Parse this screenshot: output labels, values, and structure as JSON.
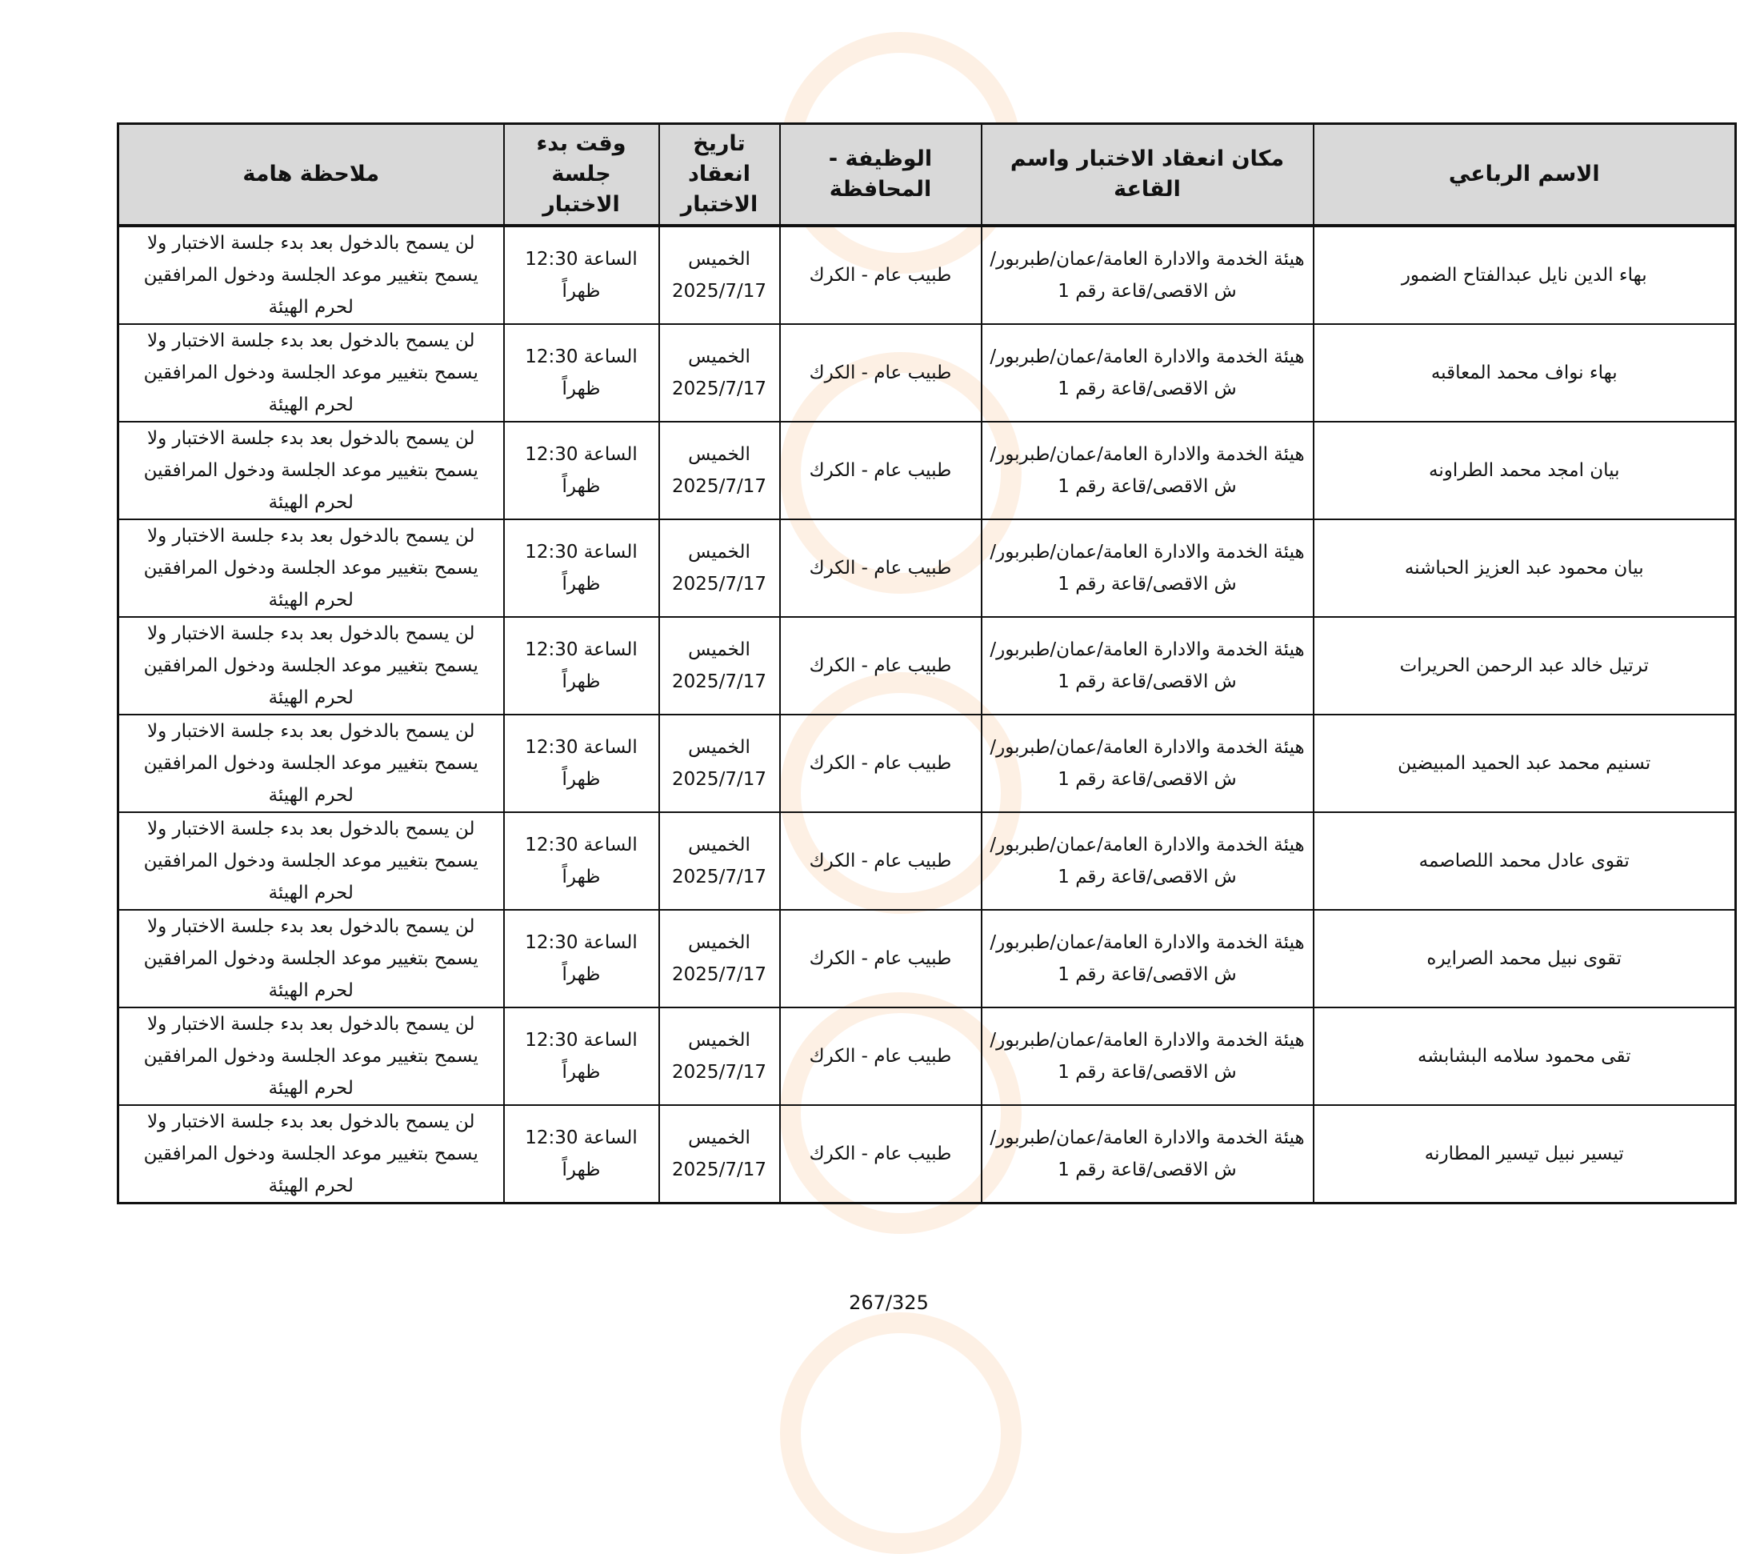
{
  "headers": {
    "name": "الاسم الرباعي",
    "place": "مكان انعقاد الاختبار واسم القاعة",
    "job": "الوظيفة - المحافظة",
    "date": "تاريخ انعقاد الاختبار",
    "time": "وقت بدء جلسة الاختبار",
    "note": "ملاحظة هامة"
  },
  "rows": [
    {
      "name": "بهاء الدين نايل عبدالفتاح الضمور",
      "place": "هيئة الخدمة والادارة العامة/عمان/طبربور/ش الاقصى/قاعة رقم 1",
      "job": "طبيب عام - الكرك",
      "date": "الخميس 2025/7/17",
      "time": "الساعة 12:30 ظهراً",
      "note": "لن يسمح بالدخول بعد بدء جلسة الاختبار ولا يسمح بتغيير موعد الجلسة ودخول المرافقين لحرم الهيئة"
    },
    {
      "name": "بهاء نواف محمد المعاقبه",
      "place": "هيئة الخدمة والادارة العامة/عمان/طبربور/ش الاقصى/قاعة رقم 1",
      "job": "طبيب عام - الكرك",
      "date": "الخميس 2025/7/17",
      "time": "الساعة 12:30 ظهراً",
      "note": "لن يسمح بالدخول بعد بدء جلسة الاختبار ولا يسمح بتغيير موعد الجلسة ودخول المرافقين لحرم الهيئة"
    },
    {
      "name": "بيان امجد محمد الطراونه",
      "place": "هيئة الخدمة والادارة العامة/عمان/طبربور/ش الاقصى/قاعة رقم 1",
      "job": "طبيب عام - الكرك",
      "date": "الخميس 2025/7/17",
      "time": "الساعة 12:30 ظهراً",
      "note": "لن يسمح بالدخول بعد بدء جلسة الاختبار ولا يسمح بتغيير موعد الجلسة ودخول المرافقين لحرم الهيئة"
    },
    {
      "name": "بيان محمود عبد العزيز الحباشنه",
      "place": "هيئة الخدمة والادارة العامة/عمان/طبربور/ش الاقصى/قاعة رقم 1",
      "job": "طبيب عام - الكرك",
      "date": "الخميس 2025/7/17",
      "time": "الساعة 12:30 ظهراً",
      "note": "لن يسمح بالدخول بعد بدء جلسة الاختبار ولا يسمح بتغيير موعد الجلسة ودخول المرافقين لحرم الهيئة"
    },
    {
      "name": "ترتيل خالد عبد الرحمن الحريرات",
      "place": "هيئة الخدمة والادارة العامة/عمان/طبربور/ش الاقصى/قاعة رقم 1",
      "job": "طبيب عام - الكرك",
      "date": "الخميس 2025/7/17",
      "time": "الساعة 12:30 ظهراً",
      "note": "لن يسمح بالدخول بعد بدء جلسة الاختبار ولا يسمح بتغيير موعد الجلسة ودخول المرافقين لحرم الهيئة"
    },
    {
      "name": "تسنيم محمد عبد الحميد المبيضين",
      "place": "هيئة الخدمة والادارة العامة/عمان/طبربور/ش الاقصى/قاعة رقم 1",
      "job": "طبيب عام - الكرك",
      "date": "الخميس 2025/7/17",
      "time": "الساعة 12:30 ظهراً",
      "note": "لن يسمح بالدخول بعد بدء جلسة الاختبار ولا يسمح بتغيير موعد الجلسة ودخول المرافقين لحرم الهيئة"
    },
    {
      "name": "تقوى عادل محمد اللصاصمه",
      "place": "هيئة الخدمة والادارة العامة/عمان/طبربور/ش الاقصى/قاعة رقم 1",
      "job": "طبيب عام - الكرك",
      "date": "الخميس 2025/7/17",
      "time": "الساعة 12:30 ظهراً",
      "note": "لن يسمح بالدخول بعد بدء جلسة الاختبار ولا يسمح بتغيير موعد الجلسة ودخول المرافقين لحرم الهيئة"
    },
    {
      "name": "تقوى نبيل محمد الصرايره",
      "place": "هيئة الخدمة والادارة العامة/عمان/طبربور/ش الاقصى/قاعة رقم 1",
      "job": "طبيب عام - الكرك",
      "date": "الخميس 2025/7/17",
      "time": "الساعة 12:30 ظهراً",
      "note": "لن يسمح بالدخول بعد بدء جلسة الاختبار ولا يسمح بتغيير موعد الجلسة ودخول المرافقين لحرم الهيئة"
    },
    {
      "name": "تقى محمود سلامه البشابشه",
      "place": "هيئة الخدمة والادارة العامة/عمان/طبربور/ش الاقصى/قاعة رقم 1",
      "job": "طبيب عام - الكرك",
      "date": "الخميس 2025/7/17",
      "time": "الساعة 12:30 ظهراً",
      "note": "لن يسمح بالدخول بعد بدء جلسة الاختبار ولا يسمح بتغيير موعد الجلسة ودخول المرافقين لحرم الهيئة"
    },
    {
      "name": "تيسير نبيل تيسير المطارنه",
      "place": "هيئة الخدمة والادارة العامة/عمان/طبربور/ش الاقصى/قاعة رقم 1",
      "job": "طبيب عام - الكرك",
      "date": "الخميس 2025/7/17",
      "time": "الساعة 12:30 ظهراً",
      "note": "لن يسمح بالدخول بعد بدء جلسة الاختبار ولا يسمح بتغيير موعد الجلسة ودخول المرافقين لحرم الهيئة"
    }
  ],
  "page_number": "267/325",
  "watermark_color": "#f5a05a"
}
